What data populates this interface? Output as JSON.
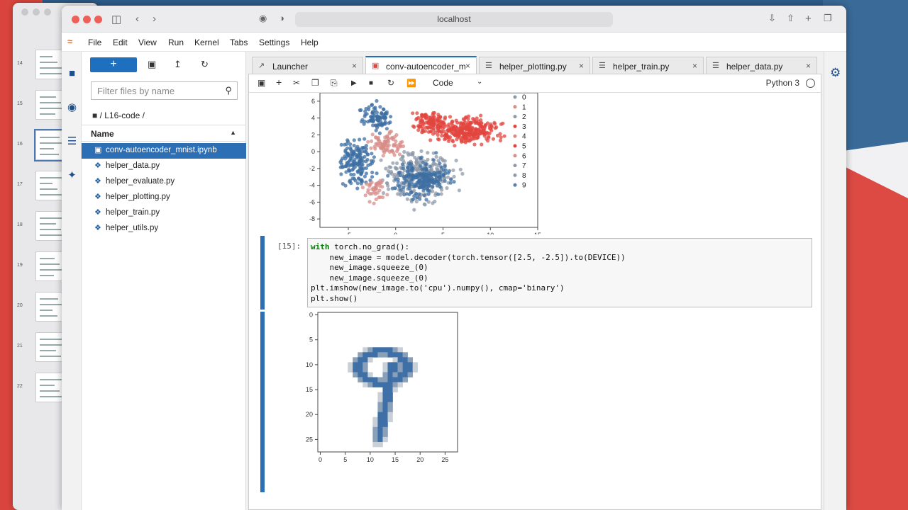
{
  "browser": {
    "url": "localhost"
  },
  "menu": [
    "File",
    "Edit",
    "View",
    "Run",
    "Kernel",
    "Tabs",
    "Settings",
    "Help"
  ],
  "sidebar": {
    "new_label": "+",
    "filter_placeholder": "Filter files by name",
    "path": "/ L16-code /",
    "column": "Name",
    "files": [
      {
        "name": "conv-autoencoder_mnist.ipynb",
        "type": "notebook",
        "selected": true
      },
      {
        "name": "helper_data.py",
        "type": "python"
      },
      {
        "name": "helper_evaluate.py",
        "type": "python"
      },
      {
        "name": "helper_plotting.py",
        "type": "python"
      },
      {
        "name": "helper_train.py",
        "type": "python"
      },
      {
        "name": "helper_utils.py",
        "type": "python"
      }
    ]
  },
  "tabs": [
    {
      "label": "Launcher",
      "icon": "launcher-icon"
    },
    {
      "label": "conv-autoencoder_m",
      "icon": "notebook-icon",
      "active": true
    },
    {
      "label": "helper_plotting.py",
      "icon": "python-icon"
    },
    {
      "label": "helper_train.py",
      "icon": "python-icon"
    },
    {
      "label": "helper_data.py",
      "icon": "python-icon"
    }
  ],
  "notebook": {
    "cell_type": "Code",
    "kernel": "Python 3",
    "cell_prompt": "[15]:",
    "code_lines": [
      "with torch.no_grad():",
      "    new_image = model.decoder(torch.tensor([2.5, -2.5]).to(DEVICE))",
      "    new_image.squeeze_(0)",
      "    new_image.squeeze_(0)",
      "plt.imshow(new_image.to('cpu').numpy(), cmap='binary')",
      "plt.show()"
    ]
  },
  "thumb_numbers": [
    "14",
    "15",
    "16",
    "17",
    "18",
    "19",
    "20",
    "21",
    "22"
  ],
  "chart_data": [
    {
      "type": "scatter",
      "xlim": [
        -8,
        15
      ],
      "ylim": [
        -9,
        7
      ],
      "xticks": [
        -5,
        0,
        5,
        10,
        15
      ],
      "yticks": [
        6,
        4,
        2,
        0,
        -2,
        -4,
        -6,
        -8
      ],
      "legend": [
        "0",
        "1",
        "2",
        "3",
        "4",
        "5",
        "6",
        "7",
        "8",
        "9"
      ],
      "legend_position": "top-right",
      "colors": {
        "blue": "#3d6fa3",
        "red": "#e2453f",
        "grey": "#8d9aa8"
      }
    },
    {
      "type": "heatmap",
      "xlim": [
        0,
        27
      ],
      "ylim": [
        27,
        0
      ],
      "xticks": [
        0,
        5,
        10,
        15,
        20,
        25
      ],
      "yticks": [
        0,
        5,
        10,
        15,
        20,
        25
      ],
      "cmap": "binary"
    }
  ]
}
